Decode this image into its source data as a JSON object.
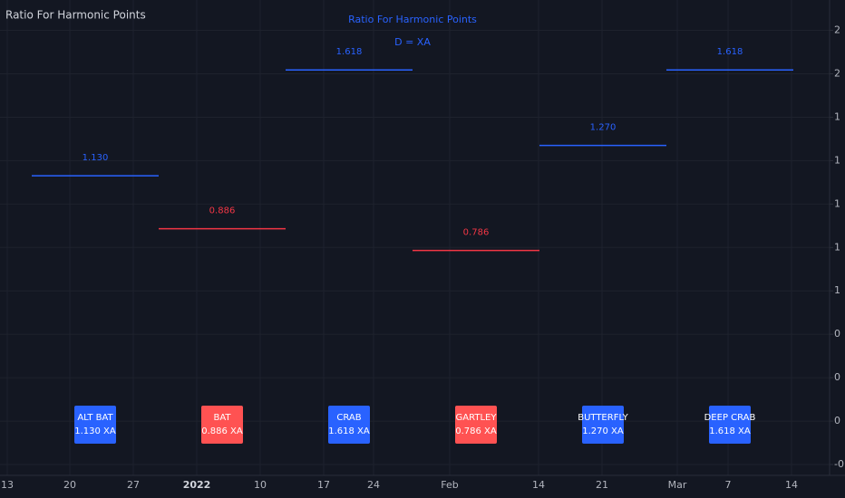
{
  "chart_data": {
    "type": "level",
    "indicator_name": "Ratio For Harmonic Points",
    "title": "Ratio For Harmonic Points",
    "subtitle": "D = XA",
    "categories": [
      "ALT BAT",
      "BAT",
      "CRAB",
      "GARTLEY",
      "BUTTERFLY",
      "DEEP CRAB"
    ],
    "values": [
      1.13,
      0.886,
      1.618,
      0.786,
      1.27,
      1.618
    ],
    "value_labels": [
      "1.130",
      "0.886",
      "1.618",
      "0.786",
      "1.270",
      "1.618"
    ],
    "box_labels": [
      "1.130 XA",
      "0.886 XA",
      "1.618 XA",
      "0.786 XA",
      "1.270 XA",
      "1.618 XA"
    ],
    "colors": [
      "#2962ff",
      "#f23645",
      "#2962ff",
      "#f23645",
      "#2962ff",
      "#2962ff"
    ],
    "box_colors": [
      "#2962ff",
      "#ff5252",
      "#2962ff",
      "#ff5252",
      "#2962ff",
      "#2962ff"
    ],
    "ylim": [
      -0.25,
      1.94
    ],
    "yticks": [
      {
        "value": 1.8,
        "label": "2"
      },
      {
        "value": 1.6,
        "label": "2"
      },
      {
        "value": 1.4,
        "label": "1"
      },
      {
        "value": 1.2,
        "label": "1"
      },
      {
        "value": 1.0,
        "label": "1"
      },
      {
        "value": 0.8,
        "label": "1"
      },
      {
        "value": 0.6,
        "label": "1"
      },
      {
        "value": 0.4,
        "label": "0"
      },
      {
        "value": 0.2,
        "label": "0"
      },
      {
        "value": 0.0,
        "label": "0"
      },
      {
        "value": -0.2,
        "label": "-0"
      }
    ],
    "x_labels": [
      "13",
      "20",
      "27",
      "2022",
      "10",
      "17",
      "24",
      "Feb",
      "14",
      "21",
      "Mar",
      "7",
      "14"
    ],
    "grid": true
  }
}
